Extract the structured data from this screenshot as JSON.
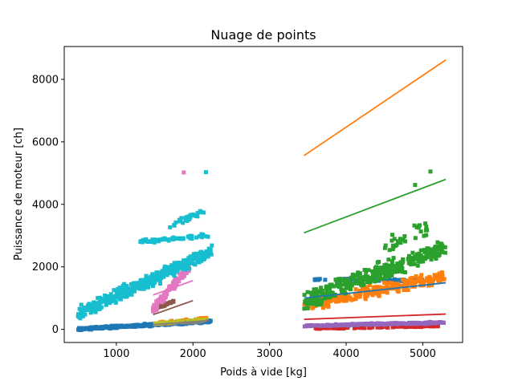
{
  "chart_data": {
    "type": "scatter",
    "title": "Nuage de points",
    "xlabel": "Poids à vide [kg]",
    "ylabel": "Puissance de moteur [ch]",
    "xlim": [
      320,
      5520
    ],
    "ylim": [
      -420,
      9050
    ],
    "xticks": [
      1000,
      2000,
      3000,
      4000,
      5000
    ],
    "yticks": [
      0,
      2000,
      4000,
      6000,
      8000
    ],
    "grid": false,
    "legend": "none",
    "marker": "square",
    "series": [
      {
        "color": "#1f77b4",
        "clusters": [
          {
            "x": [
              500,
              2250
            ],
            "y_start": 10,
            "y_end": 260,
            "spread": 55,
            "n": 320
          },
          {
            "x": [
              3450,
              5000
            ],
            "y_start": 1600,
            "y_end": 1560,
            "spread": 50,
            "n": 55
          }
        ],
        "fit": [
          [
            3450,
            1000
          ],
          [
            5300,
            1490
          ]
        ]
      },
      {
        "color": "#ff7f0e",
        "clusters": [
          {
            "x": [
              3450,
              5300
            ],
            "y_start": 750,
            "y_end": 1700,
            "spread": 260,
            "n": 260
          },
          {
            "x": [
              1550,
              2200
            ],
            "y_start": 200,
            "y_end": 360,
            "spread": 40,
            "n": 25
          }
        ],
        "fit": [
          [
            3450,
            5560
          ],
          [
            5300,
            8620
          ]
        ]
      },
      {
        "color": "#2ca02c",
        "clusters": [
          {
            "x": [
              3450,
              5300
            ],
            "y_start": 900,
            "y_end": 2600,
            "spread": 420,
            "n": 340
          },
          {
            "x": [
              4500,
              5150
            ],
            "y_start": 2600,
            "y_end": 3400,
            "spread": 420,
            "n": 30
          }
        ],
        "outliers": [
          [
            5100,
            5050
          ],
          [
            4900,
            4620
          ]
        ],
        "fit": [
          [
            3450,
            3090
          ],
          [
            5300,
            4800
          ]
        ]
      },
      {
        "color": "#d62728",
        "clusters": [
          {
            "x": [
              3600,
              5200
            ],
            "y_start": 30,
            "y_end": 110,
            "spread": 35,
            "n": 90
          }
        ],
        "fit": [
          [
            3450,
            320
          ],
          [
            5300,
            490
          ]
        ]
      },
      {
        "color": "#9467bd",
        "clusters": [
          {
            "x": [
              3450,
              5300
            ],
            "y_start": 110,
            "y_end": 220,
            "spread": 40,
            "n": 220
          }
        ],
        "fit": [
          [
            3450,
            100
          ],
          [
            5300,
            170
          ]
        ]
      },
      {
        "color": "#8c564b",
        "clusters": [
          {
            "x": [
              1480,
              1750
            ],
            "y_start": 650,
            "y_end": 900,
            "spread": 60,
            "n": 55
          }
        ],
        "fit": [
          [
            1480,
            470
          ],
          [
            2000,
            920
          ]
        ]
      },
      {
        "color": "#e377c2",
        "clusters": [
          {
            "x": [
              1480,
              1950
            ],
            "y_start": 650,
            "y_end": 2000,
            "spread": 200,
            "n": 120
          }
        ],
        "outliers": [
          [
            1880,
            5020
          ]
        ],
        "fit": [
          [
            1480,
            1100
          ],
          [
            2000,
            1560
          ]
        ]
      },
      {
        "color": "#7f7f7f",
        "clusters": [
          {
            "x": [
              1500,
              2200
            ],
            "y_start": 150,
            "y_end": 280,
            "spread": 40,
            "n": 40
          }
        ],
        "fit": [
          [
            1480,
            150
          ],
          [
            2200,
            280
          ]
        ]
      },
      {
        "color": "#bcbd22",
        "clusters": [
          {
            "x": [
              1500,
              2150
            ],
            "y_start": 180,
            "y_end": 330,
            "spread": 40,
            "n": 35
          }
        ],
        "fit": [
          [
            1480,
            220
          ],
          [
            2200,
            360
          ]
        ]
      },
      {
        "color": "#17becf",
        "clusters": [
          {
            "x": [
              500,
              2250
            ],
            "y_start": 500,
            "y_end": 2500,
            "spread": 300,
            "n": 360
          },
          {
            "x": [
              1300,
              2200
            ],
            "y_start": 2800,
            "y_end": 3000,
            "spread": 80,
            "n": 60
          },
          {
            "x": [
              1700,
              2150
            ],
            "y_start": 3300,
            "y_end": 3800,
            "spread": 200,
            "n": 30
          }
        ],
        "outliers": [
          [
            2170,
            5030
          ]
        ],
        "fit": [
          [
            510,
            650
          ],
          [
            2220,
            2320
          ]
        ]
      }
    ]
  }
}
